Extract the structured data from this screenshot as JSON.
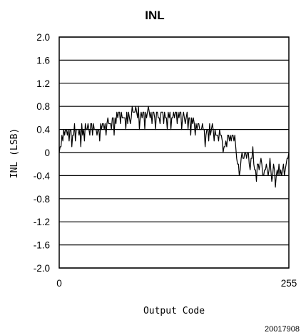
{
  "chart_data": {
    "type": "line",
    "title": "INL",
    "xlabel": "Output Code",
    "ylabel": "INL (LSB)",
    "xlim": [
      0,
      255
    ],
    "ylim": [
      -2.0,
      2.0
    ],
    "x_ticks": [
      "0",
      "255"
    ],
    "x_tick_values": [
      0,
      255
    ],
    "y_ticks": [
      "2.0",
      "1.6",
      "1.2",
      "0.8",
      "0.4",
      "0",
      "-0.4",
      "-0.8",
      "-1.2",
      "-1.6",
      "-2.0"
    ],
    "y_tick_values": [
      2.0,
      1.6,
      1.2,
      0.8,
      0.4,
      0,
      -0.4,
      -0.8,
      -1.2,
      -1.6,
      -2.0
    ],
    "grid": "horizontal",
    "series": [
      {
        "color": "#000000",
        "points": [
          [
            0,
            0.0
          ],
          [
            1,
            0.1
          ],
          [
            2,
            0.1
          ],
          [
            3,
            0.3
          ],
          [
            4,
            0.2
          ],
          [
            5,
            0.4
          ],
          [
            6,
            0.3
          ],
          [
            7,
            0.4
          ],
          [
            8,
            0.4
          ],
          [
            9,
            0.3
          ],
          [
            10,
            0.4
          ],
          [
            11,
            0.2
          ],
          [
            12,
            0.4
          ],
          [
            13,
            0.4
          ],
          [
            14,
            0.1
          ],
          [
            15,
            0.3
          ],
          [
            16,
            0.3
          ],
          [
            17,
            0.5
          ],
          [
            18,
            0.2
          ],
          [
            19,
            0.4
          ],
          [
            20,
            0.4
          ],
          [
            21,
            0.4
          ],
          [
            22,
            0.3
          ],
          [
            23,
            0.4
          ],
          [
            24,
            0.1
          ],
          [
            25,
            0.5
          ],
          [
            26,
            0.3
          ],
          [
            27,
            0.4
          ],
          [
            28,
            0.2
          ],
          [
            29,
            0.5
          ],
          [
            30,
            0.4
          ],
          [
            31,
            0.4
          ],
          [
            32,
            0.5
          ],
          [
            33,
            0.4
          ],
          [
            34,
            0.3
          ],
          [
            35,
            0.5
          ],
          [
            36,
            0.5
          ],
          [
            37,
            0.3
          ],
          [
            38,
            0.5
          ],
          [
            39,
            0.4
          ],
          [
            40,
            0.4
          ],
          [
            41,
            0.4
          ],
          [
            42,
            0.3
          ],
          [
            43,
            0.4
          ],
          [
            44,
            0.4
          ],
          [
            45,
            0.2
          ],
          [
            46,
            0.5
          ],
          [
            47,
            0.4
          ],
          [
            48,
            0.5
          ],
          [
            49,
            0.5
          ],
          [
            50,
            0.4
          ],
          [
            51,
            0.5
          ],
          [
            52,
            0.3
          ],
          [
            53,
            0.5
          ],
          [
            54,
            0.6
          ],
          [
            55,
            0.5
          ],
          [
            56,
            0.5
          ],
          [
            57,
            0.5
          ],
          [
            58,
            0.4
          ],
          [
            59,
            0.6
          ],
          [
            60,
            0.6
          ],
          [
            61,
            0.3
          ],
          [
            62,
            0.6
          ],
          [
            63,
            0.5
          ],
          [
            64,
            0.7
          ],
          [
            65,
            0.6
          ],
          [
            66,
            0.7
          ],
          [
            67,
            0.7
          ],
          [
            68,
            0.5
          ],
          [
            69,
            0.7
          ],
          [
            70,
            0.6
          ],
          [
            71,
            0.6
          ],
          [
            72,
            0.6
          ],
          [
            73,
            0.6
          ],
          [
            74,
            0.4
          ],
          [
            75,
            0.7
          ],
          [
            76,
            0.5
          ],
          [
            77,
            0.7
          ],
          [
            78,
            0.6
          ],
          [
            79,
            0.5
          ],
          [
            80,
            0.6
          ],
          [
            81,
            0.8
          ],
          [
            82,
            0.7
          ],
          [
            83,
            0.7
          ],
          [
            84,
            0.7
          ],
          [
            85,
            0.8
          ],
          [
            86,
            0.7
          ],
          [
            87,
            0.6
          ],
          [
            88,
            0.8
          ],
          [
            89,
            0.4
          ],
          [
            90,
            0.6
          ],
          [
            91,
            0.7
          ],
          [
            92,
            0.6
          ],
          [
            93,
            0.7
          ],
          [
            94,
            0.7
          ],
          [
            95,
            0.4
          ],
          [
            96,
            0.7
          ],
          [
            97,
            0.6
          ],
          [
            98,
            0.7
          ],
          [
            99,
            0.8
          ],
          [
            100,
            0.7
          ],
          [
            101,
            0.6
          ],
          [
            102,
            0.7
          ],
          [
            103,
            0.5
          ],
          [
            104,
            0.7
          ],
          [
            105,
            0.7
          ],
          [
            106,
            0.6
          ],
          [
            107,
            0.4
          ],
          [
            108,
            0.7
          ],
          [
            109,
            0.7
          ],
          [
            110,
            0.6
          ],
          [
            111,
            0.6
          ],
          [
            112,
            0.5
          ],
          [
            113,
            0.7
          ],
          [
            114,
            0.7
          ],
          [
            115,
            0.7
          ],
          [
            116,
            0.5
          ],
          [
            117,
            0.7
          ],
          [
            118,
            0.6
          ],
          [
            119,
            0.6
          ],
          [
            120,
            0.4
          ],
          [
            121,
            0.7
          ],
          [
            122,
            0.6
          ],
          [
            123,
            0.7
          ],
          [
            124,
            0.4
          ],
          [
            125,
            0.6
          ],
          [
            126,
            0.6
          ],
          [
            127,
            0.7
          ],
          [
            128,
            0.6
          ],
          [
            129,
            0.7
          ],
          [
            130,
            0.7
          ],
          [
            131,
            0.5
          ],
          [
            132,
            0.7
          ],
          [
            133,
            0.6
          ],
          [
            134,
            0.7
          ],
          [
            135,
            0.7
          ],
          [
            136,
            0.4
          ],
          [
            137,
            0.6
          ],
          [
            138,
            0.7
          ],
          [
            139,
            0.6
          ],
          [
            140,
            0.5
          ],
          [
            141,
            0.6
          ],
          [
            142,
            0.7
          ],
          [
            143,
            0.4
          ],
          [
            144,
            0.6
          ],
          [
            145,
            0.6
          ],
          [
            146,
            0.3
          ],
          [
            147,
            0.6
          ],
          [
            148,
            0.5
          ],
          [
            149,
            0.6
          ],
          [
            150,
            0.5
          ],
          [
            151,
            0.3
          ],
          [
            152,
            0.5
          ],
          [
            153,
            0.4
          ],
          [
            154,
            0.5
          ],
          [
            155,
            0.5
          ],
          [
            156,
            0.4
          ],
          [
            157,
            0.4
          ],
          [
            158,
            0.4
          ],
          [
            159,
            0.5
          ],
          [
            160,
            0.4
          ],
          [
            161,
            0.4
          ],
          [
            162,
            0.1
          ],
          [
            163,
            0.3
          ],
          [
            164,
            0.4
          ],
          [
            165,
            0.4
          ],
          [
            166,
            0.2
          ],
          [
            167,
            0.5
          ],
          [
            168,
            0.3
          ],
          [
            169,
            0.4
          ],
          [
            170,
            0.5
          ],
          [
            171,
            0.4
          ],
          [
            172,
            0.2
          ],
          [
            173,
            0.4
          ],
          [
            174,
            0.3
          ],
          [
            175,
            0.3
          ],
          [
            176,
            0.3
          ],
          [
            177,
            0.2
          ],
          [
            178,
            0.4
          ],
          [
            179,
            0.3
          ],
          [
            180,
            0.3
          ],
          [
            181,
            0.2
          ],
          [
            182,
            0.0
          ],
          [
            183,
            0.1
          ],
          [
            184,
            0.1
          ],
          [
            185,
            0.2
          ],
          [
            186,
            0.1
          ],
          [
            187,
            0.3
          ],
          [
            188,
            0.3
          ],
          [
            189,
            0.2
          ],
          [
            190,
            0.3
          ],
          [
            191,
            0.2
          ],
          [
            192,
            0.3
          ],
          [
            193,
            0.3
          ],
          [
            194,
            0.2
          ],
          [
            195,
            0.3
          ],
          [
            196,
            0.1
          ],
          [
            197,
            -0.1
          ],
          [
            198,
            -0.2
          ],
          [
            199,
            -0.2
          ],
          [
            200,
            -0.4
          ],
          [
            201,
            -0.3
          ],
          [
            202,
            -0.1
          ],
          [
            203,
            0.0
          ],
          [
            204,
            -0.1
          ],
          [
            205,
            -0.1
          ],
          [
            206,
            0.0
          ],
          [
            207,
            0.0
          ],
          [
            208,
            -0.1
          ],
          [
            209,
            0.0
          ],
          [
            210,
            0.0
          ],
          [
            211,
            -0.2
          ],
          [
            212,
            -0.3
          ],
          [
            213,
            -0.1
          ],
          [
            214,
            -0.1
          ],
          [
            215,
            0.1
          ],
          [
            216,
            -0.2
          ],
          [
            217,
            -0.3
          ],
          [
            218,
            -0.3
          ],
          [
            219,
            -0.5
          ],
          [
            220,
            -0.2
          ],
          [
            221,
            -0.2
          ],
          [
            222,
            -0.3
          ],
          [
            223,
            -0.2
          ],
          [
            224,
            -0.1
          ],
          [
            225,
            -0.2
          ],
          [
            226,
            -0.4
          ],
          [
            227,
            -0.4
          ],
          [
            228,
            -0.3
          ],
          [
            229,
            -0.3
          ],
          [
            230,
            -0.2
          ],
          [
            231,
            -0.3
          ],
          [
            232,
            -0.4
          ],
          [
            233,
            -0.3
          ],
          [
            234,
            -0.1
          ],
          [
            235,
            -0.3
          ],
          [
            236,
            -0.5
          ],
          [
            237,
            -0.4
          ],
          [
            238,
            -0.2
          ],
          [
            239,
            -0.3
          ],
          [
            240,
            -0.6
          ],
          [
            241,
            -0.4
          ],
          [
            242,
            -0.3
          ],
          [
            243,
            -0.4
          ],
          [
            244,
            -0.2
          ],
          [
            245,
            -0.4
          ],
          [
            246,
            -0.3
          ],
          [
            247,
            -0.4
          ],
          [
            248,
            -0.3
          ],
          [
            249,
            -0.2
          ],
          [
            250,
            -0.4
          ],
          [
            251,
            -0.3
          ],
          [
            252,
            -0.2
          ],
          [
            253,
            -0.1
          ],
          [
            254,
            -0.1
          ],
          [
            255,
            0.0
          ]
        ]
      }
    ]
  },
  "figure_id": "20017908"
}
